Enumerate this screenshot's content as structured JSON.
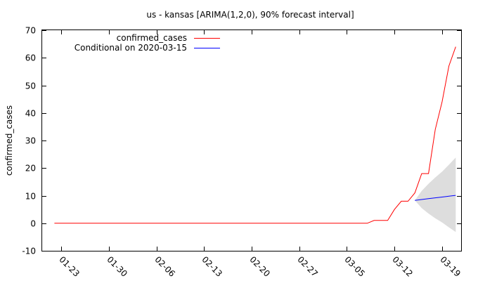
{
  "chart_data": {
    "type": "line",
    "title": "us - kansas [ARIMA(1,2,0), 90% forecast interval]",
    "ylabel": "confirmed_cases",
    "xlabel": "",
    "ylim": [
      -10,
      70
    ],
    "yticks": [
      -10,
      0,
      10,
      20,
      30,
      40,
      50,
      60,
      70
    ],
    "xtick_labels": [
      "01-23",
      "01-30",
      "02-06",
      "02-13",
      "02-20",
      "02-27",
      "03-05",
      "03-12",
      "03-19"
    ],
    "xtick_days": [
      1,
      8,
      15,
      22,
      29,
      36,
      43,
      50,
      57
    ],
    "x_range_days": [
      -1.8,
      59.8
    ],
    "legend_position": "top-left",
    "series": [
      {
        "name": "confirmed_cases",
        "color": "#ff0000",
        "days": [
          0,
          46,
          47,
          48,
          49,
          50,
          51,
          52,
          53,
          54,
          55,
          56,
          57,
          58,
          59
        ],
        "values": [
          0,
          0,
          1,
          1,
          1,
          5,
          8,
          8,
          11,
          18,
          18,
          34,
          44,
          57,
          64
        ]
      },
      {
        "name": "Conditional on 2020-03-15",
        "color": "#0000ff",
        "days": [
          53,
          54,
          55,
          56,
          57,
          58,
          59
        ],
        "values": [
          8.3,
          8.6,
          8.9,
          9.2,
          9.5,
          9.8,
          10.1
        ]
      }
    ],
    "forecast_interval": {
      "color": "#dddddd",
      "days": [
        53,
        54,
        55,
        56,
        57,
        58,
        59
      ],
      "lower": [
        8.3,
        5.5,
        3.5,
        1.8,
        0.3,
        -1.5,
        -3.2
      ],
      "upper": [
        8.3,
        11.7,
        14.3,
        16.6,
        18.7,
        21.2,
        23.8
      ]
    }
  }
}
